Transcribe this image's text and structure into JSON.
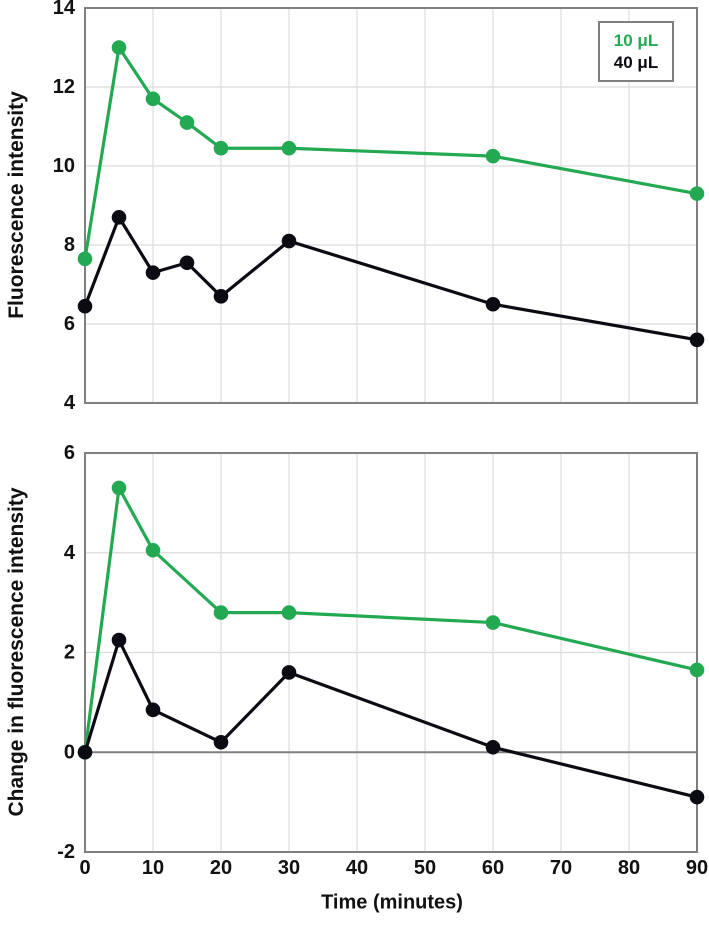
{
  "figure": {
    "background": "#ffffff",
    "border_color": "#7f7f7f",
    "grid_color": "#dcdcdc",
    "zero_line_color": "#808080"
  },
  "legend": {
    "entries": [
      {
        "label": "10 μL",
        "color": "#24a953"
      },
      {
        "label": "40 μL",
        "color": "#0b0b14"
      }
    ]
  },
  "chart_data": [
    {
      "type": "line",
      "title": "",
      "ylabel": "Fluorescence intensity",
      "xlabel": "",
      "xlim": [
        0,
        90
      ],
      "ylim": [
        4,
        14
      ],
      "yticks": [
        4,
        6,
        8,
        10,
        12,
        14
      ],
      "xticks": [
        0,
        10,
        20,
        30,
        40,
        50,
        60,
        70,
        80,
        90
      ],
      "show_xticklabels": false,
      "grid": true,
      "zero_line": false,
      "legend_position": "top-right",
      "x": [
        0,
        5,
        10,
        15,
        20,
        30,
        60,
        90
      ],
      "series": [
        {
          "name": "10 μL",
          "color": "#24a953",
          "values": [
            7.65,
            13.0,
            11.7,
            11.1,
            10.45,
            10.45,
            10.25,
            9.3
          ]
        },
        {
          "name": "40 μL",
          "color": "#0b0b14",
          "values": [
            6.45,
            8.7,
            7.3,
            7.55,
            6.7,
            8.1,
            6.5,
            5.6
          ]
        }
      ]
    },
    {
      "type": "line",
      "title": "",
      "ylabel": "Change in fluorescence intensity",
      "xlabel": "Time (minutes)",
      "xlim": [
        0,
        90
      ],
      "ylim": [
        -2,
        6
      ],
      "yticks": [
        -2,
        0,
        2,
        4,
        6
      ],
      "xticks": [
        0,
        10,
        20,
        30,
        40,
        50,
        60,
        70,
        80,
        90
      ],
      "show_xticklabels": true,
      "grid": true,
      "zero_line": true,
      "x": [
        0,
        5,
        10,
        20,
        30,
        60,
        90
      ],
      "series": [
        {
          "name": "10 μL",
          "color": "#24a953",
          "values": [
            0,
            5.3,
            4.05,
            2.8,
            2.8,
            2.6,
            1.65
          ]
        },
        {
          "name": "40 μL",
          "color": "#0b0b14",
          "values": [
            0,
            2.25,
            0.85,
            0.2,
            1.6,
            0.1,
            -0.9
          ]
        }
      ]
    }
  ]
}
